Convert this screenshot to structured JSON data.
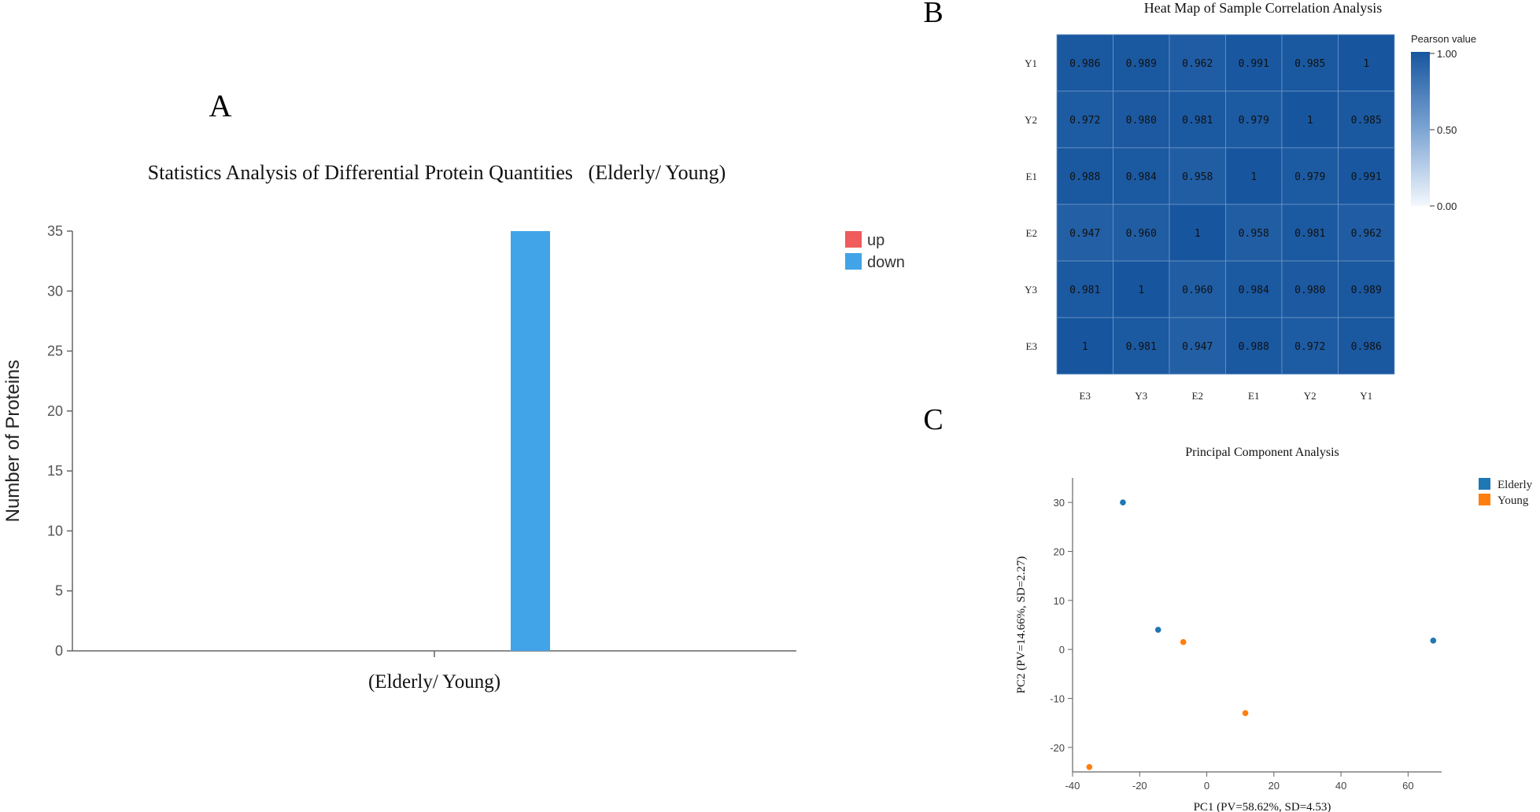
{
  "panels": {
    "a_letter": "A",
    "b_letter": "B",
    "c_letter": "C"
  },
  "chart_data": [
    {
      "id": "A",
      "type": "bar",
      "title": "Statistics Analysis of Differential Protein Quantities   (Elderly/ Young)",
      "categories": [
        "(Elderly/ Young)"
      ],
      "series": [
        {
          "name": "up",
          "values": [
            0
          ],
          "color": "#f05b5b"
        },
        {
          "name": "down",
          "values": [
            35
          ],
          "color": "#42a4e8"
        }
      ],
      "xlabel": "",
      "ylabel": "Number of Proteins",
      "ylim": [
        0,
        35
      ],
      "yticks": [
        0,
        5,
        10,
        15,
        20,
        25,
        30,
        35
      ],
      "legend_position": "top-right",
      "grid": false
    },
    {
      "id": "B",
      "type": "heatmap",
      "title": "Heat Map of Sample Correlation Analysis",
      "rows": [
        "Y1",
        "Y2",
        "E1",
        "E2",
        "Y3",
        "E3"
      ],
      "cols": [
        "E3",
        "Y3",
        "E2",
        "E1",
        "Y2",
        "Y1"
      ],
      "labels": [
        [
          "0.986",
          "0.989",
          "0.962",
          "0.991",
          "0.985",
          "1"
        ],
        [
          "0.972",
          "0.980",
          "0.981",
          "0.979",
          "1",
          "0.985"
        ],
        [
          "0.988",
          "0.984",
          "0.958",
          "1",
          "0.979",
          "0.991"
        ],
        [
          "0.947",
          "0.960",
          "1",
          "0.958",
          "0.981",
          "0.962"
        ],
        [
          "0.981",
          "1",
          "0.960",
          "0.984",
          "0.980",
          "0.989"
        ],
        [
          "1",
          "0.981",
          "0.947",
          "0.988",
          "0.972",
          "0.986"
        ]
      ],
      "colorbar": {
        "title": "Pearson value",
        "ticks": [
          "1.00",
          "0.50",
          "0.00"
        ],
        "range": [
          0,
          1
        ],
        "low_color": "#ffffff",
        "high_color": "#17569f"
      }
    },
    {
      "id": "C",
      "type": "scatter",
      "title": "Principal Component Analysis",
      "xlabel": "PC1 (PV=58.62%, SD=4.53)",
      "ylabel": "PC2 (PV=14.66%, SD=2.27)",
      "xlim": [
        -40,
        70
      ],
      "ylim": [
        -25,
        35
      ],
      "xticks": [
        -40,
        -20,
        0,
        20,
        40,
        60
      ],
      "yticks": [
        -20,
        -10,
        0,
        10,
        20,
        30
      ],
      "legend_position": "top-right",
      "series": [
        {
          "name": "Elderly",
          "color": "#1f77b4",
          "points": [
            [
              -25,
              30
            ],
            [
              -14.5,
              4
            ],
            [
              67.5,
              1.8
            ]
          ]
        },
        {
          "name": "Young",
          "color": "#ff7f0e",
          "points": [
            [
              -7,
              1.5
            ],
            [
              11.5,
              -13
            ],
            [
              -35,
              -24
            ]
          ]
        }
      ]
    }
  ]
}
